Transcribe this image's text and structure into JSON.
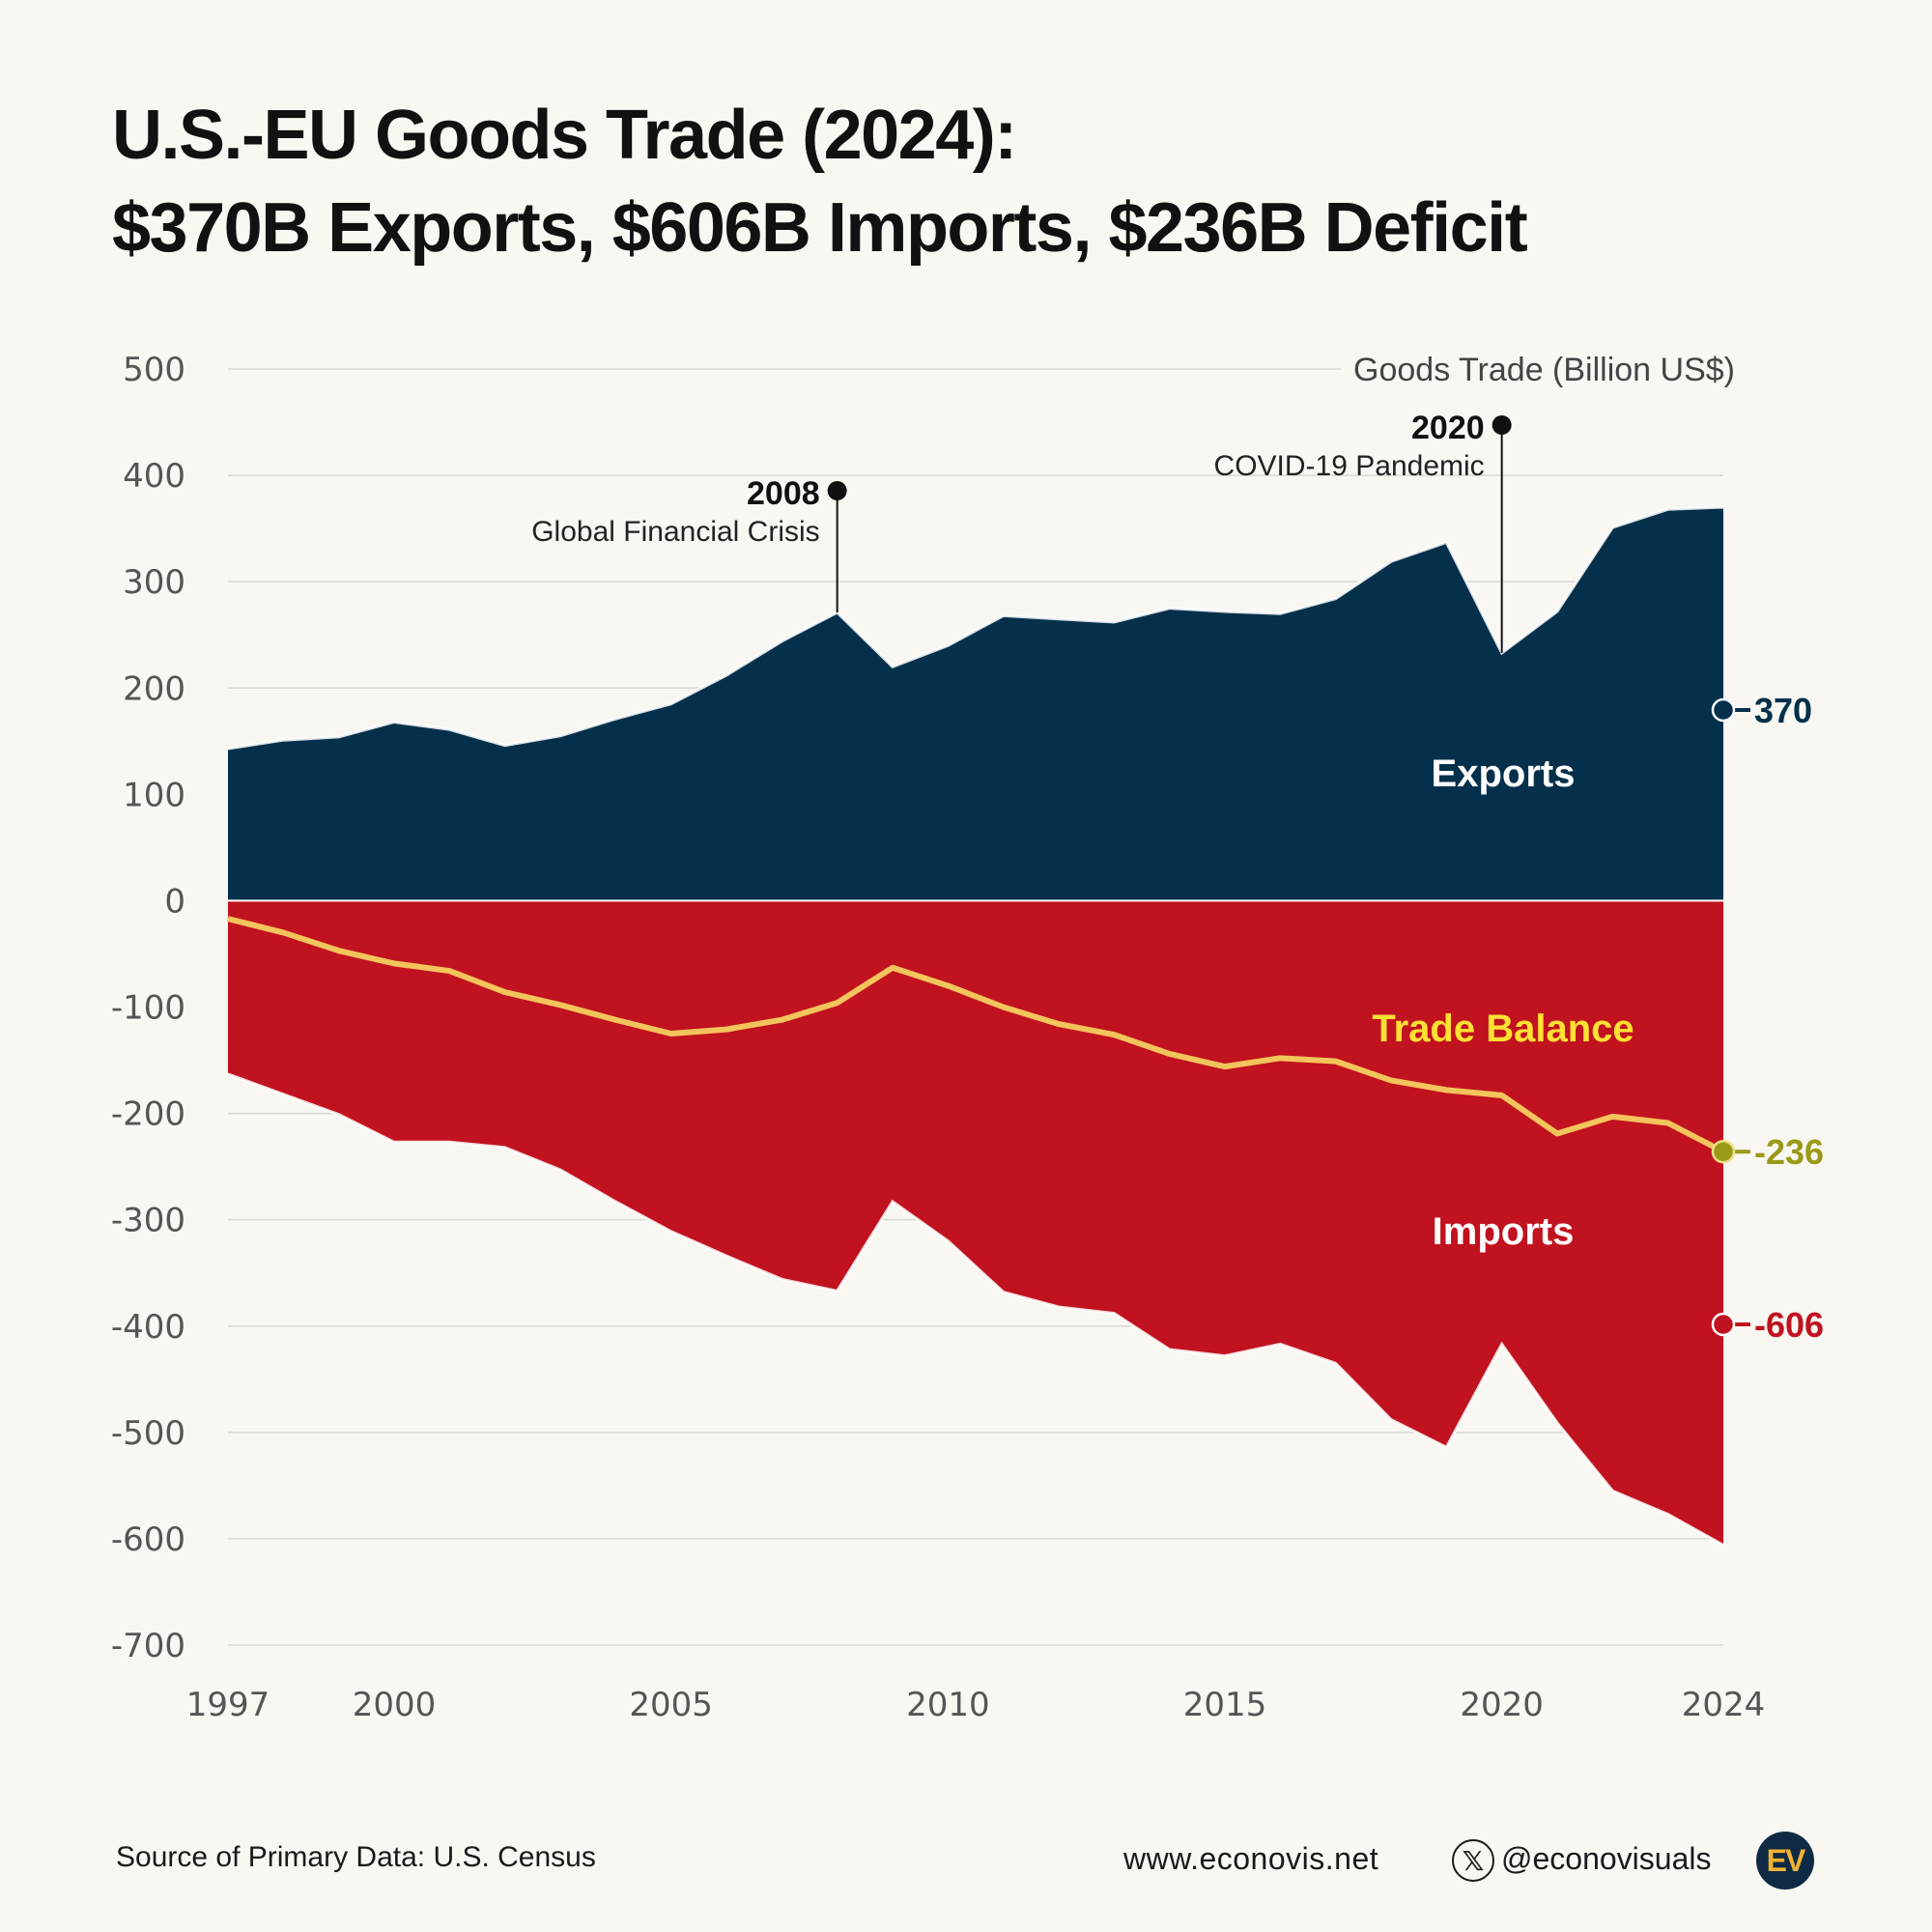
{
  "title": {
    "line1": "U.S.-EU Goods Trade (2024):",
    "line2": "$370B Exports, $606B Imports, $236B Deficit"
  },
  "colors": {
    "exports": "#04304b",
    "imports": "#c1121f",
    "balance": "#f3c45c",
    "balance_marker": "#9a9a18",
    "grid": "#d9d9d4",
    "axis_text": "#555555"
  },
  "chart_data": {
    "type": "area",
    "unit_label": "Goods Trade (Billion US$)",
    "x": [
      1997,
      1998,
      1999,
      2000,
      2001,
      2002,
      2003,
      2004,
      2005,
      2006,
      2007,
      2008,
      2009,
      2010,
      2011,
      2012,
      2013,
      2014,
      2015,
      2016,
      2017,
      2018,
      2019,
      2020,
      2021,
      2022,
      2023,
      2024
    ],
    "series": [
      {
        "name": "Exports",
        "label": "Exports",
        "values": [
          143,
          151,
          154,
          168,
          161,
          146,
          155,
          171,
          185,
          212,
          244,
          271,
          220,
          240,
          268,
          265,
          262,
          275,
          272,
          270,
          284,
          319,
          337,
          233,
          272,
          351,
          368,
          370
        ]
      },
      {
        "name": "Imports",
        "label": "Imports",
        "values": [
          -163,
          -182,
          -201,
          -227,
          -227,
          -232,
          -253,
          -283,
          -311,
          -334,
          -356,
          -367,
          -283,
          -320,
          -368,
          -382,
          -388,
          -422,
          -428,
          -417,
          -435,
          -488,
          -514,
          -417,
          -491,
          -555,
          -577,
          -606
        ]
      },
      {
        "name": "Trade Balance",
        "label": "Trade Balance",
        "values": [
          -17,
          -30,
          -47,
          -59,
          -66,
          -86,
          -98,
          -112,
          -125,
          -121,
          -112,
          -96,
          -63,
          -80,
          -100,
          -116,
          -126,
          -144,
          -156,
          -148,
          -151,
          -169,
          -178,
          -183,
          -219,
          -203,
          -209,
          -236
        ]
      }
    ],
    "y_ticks": [
      500,
      400,
      300,
      200,
      100,
      0,
      -100,
      -200,
      -300,
      -400,
      -500,
      -600,
      -700
    ],
    "x_ticks": [
      1997,
      2000,
      2005,
      2010,
      2015,
      2020,
      2024
    ],
    "ylim": [
      -700,
      500
    ],
    "grid": true,
    "end_labels": {
      "exports": "370",
      "balance": "-236",
      "imports": "-606"
    },
    "annotations": [
      {
        "year": 2008,
        "title": "2008",
        "text": "Global Financial Crisis"
      },
      {
        "year": 2020,
        "title": "2020",
        "text": "COVID-19 Pandemic"
      }
    ]
  },
  "footer": {
    "source": "Source of Primary Data: U.S. Census",
    "website": "www.econovis.net",
    "x_icon": "x-logo-icon",
    "x_symbol": "𝕏",
    "handle": "@econovisuals",
    "logo": "EV"
  }
}
